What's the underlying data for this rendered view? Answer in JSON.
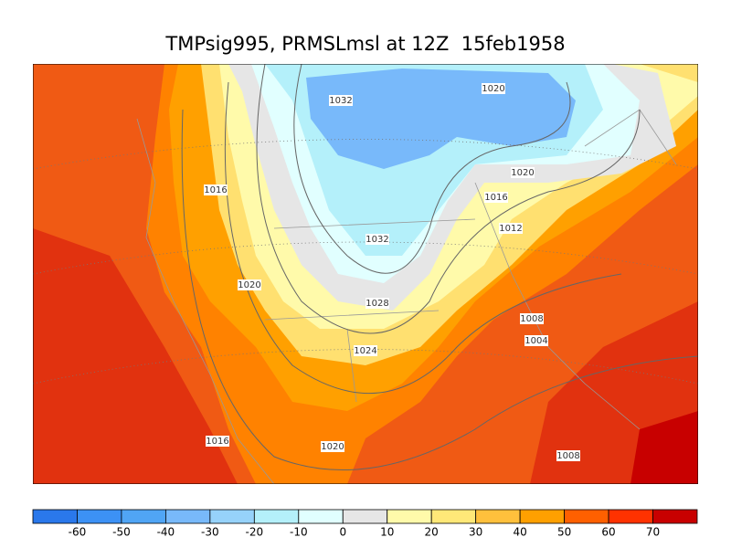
{
  "title": "TMPsig995, PRMSLmsl at 12Z  15feb1958",
  "contour_labels": [
    "1032",
    "1020",
    "1020",
    "1016",
    "1016",
    "1012",
    "1032",
    "1020",
    "1028",
    "1008",
    "1004",
    "1024",
    "1016",
    "1020",
    "1008"
  ],
  "colorbar": {
    "levels": [
      -60,
      -50,
      -40,
      -30,
      -20,
      -10,
      0,
      10,
      20,
      30,
      40,
      50,
      60,
      70
    ],
    "colors": [
      "#2a78eb",
      "#3c91f5",
      "#50a5f5",
      "#78b9fa",
      "#96d2fa",
      "#b4f0fa",
      "#e1ffff",
      "#e6e6e6",
      "#fffaaa",
      "#ffe878",
      "#ffc03c",
      "#ffa000",
      "#ff6000",
      "#ff3200",
      "#c80000"
    ]
  }
}
